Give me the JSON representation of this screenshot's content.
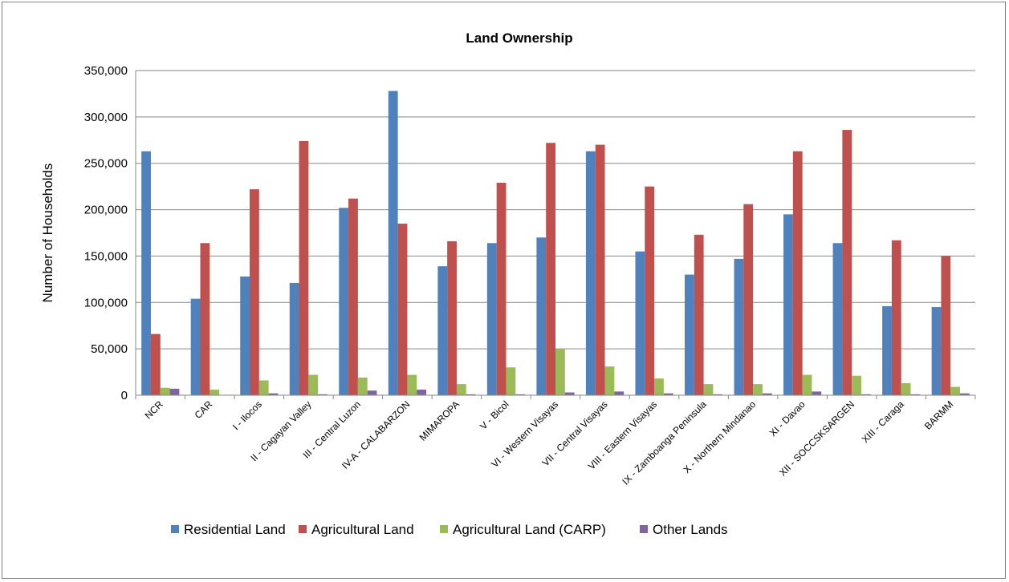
{
  "chart_data": {
    "type": "bar",
    "title": "Land Ownership",
    "ylabel": "Number of Households",
    "xlabel": "",
    "ylim": [
      0,
      350000
    ],
    "yticks": [
      0,
      50000,
      100000,
      150000,
      200000,
      250000,
      300000,
      350000
    ],
    "ytick_labels": [
      "0",
      "50,000",
      "100,000",
      "150,000",
      "200,000",
      "250,000",
      "300,000",
      "350,000"
    ],
    "grid": true,
    "legend_position": "bottom",
    "categories": [
      "NCR",
      "CAR",
      "I - Ilocos",
      "II - Cagayan Valley",
      "III - Central Luzon",
      "IV-A - CALABARZON",
      "MIMAROPA",
      "V - Bicol",
      "VI - Western Visayas",
      "VII - Central Visayas",
      "VIII - Eastern Visayas",
      "IX - Zamboanga Peninsula",
      "X - Northern Mindanao",
      "XI - Davao",
      "XII - SOCCSKSARGEN",
      "XIII - Caraga",
      "BARMM"
    ],
    "series": [
      {
        "name": "Residential Land",
        "color": "#4f81bd",
        "values": [
          263000,
          104000,
          128000,
          121000,
          202000,
          328000,
          139000,
          164000,
          170000,
          263000,
          155000,
          130000,
          147000,
          195000,
          164000,
          96000,
          95000
        ]
      },
      {
        "name": "Agricultural Land",
        "color": "#c0504d",
        "values": [
          66000,
          164000,
          222000,
          274000,
          212000,
          185000,
          166000,
          229000,
          272000,
          270000,
          225000,
          173000,
          206000,
          263000,
          286000,
          167000,
          150000
        ]
      },
      {
        "name": "Agricultural Land (CARP)",
        "color": "#9bbb59",
        "values": [
          8000,
          6000,
          16000,
          22000,
          19000,
          22000,
          12000,
          30000,
          50000,
          31000,
          18000,
          12000,
          12000,
          22000,
          21000,
          13000,
          9000
        ]
      },
      {
        "name": "Other Lands",
        "color": "#8064a2",
        "values": [
          7000,
          0,
          2000,
          1000,
          5000,
          6000,
          1000,
          1000,
          3000,
          4000,
          2000,
          1000,
          2000,
          4000,
          1000,
          1000,
          2000
        ]
      }
    ]
  }
}
